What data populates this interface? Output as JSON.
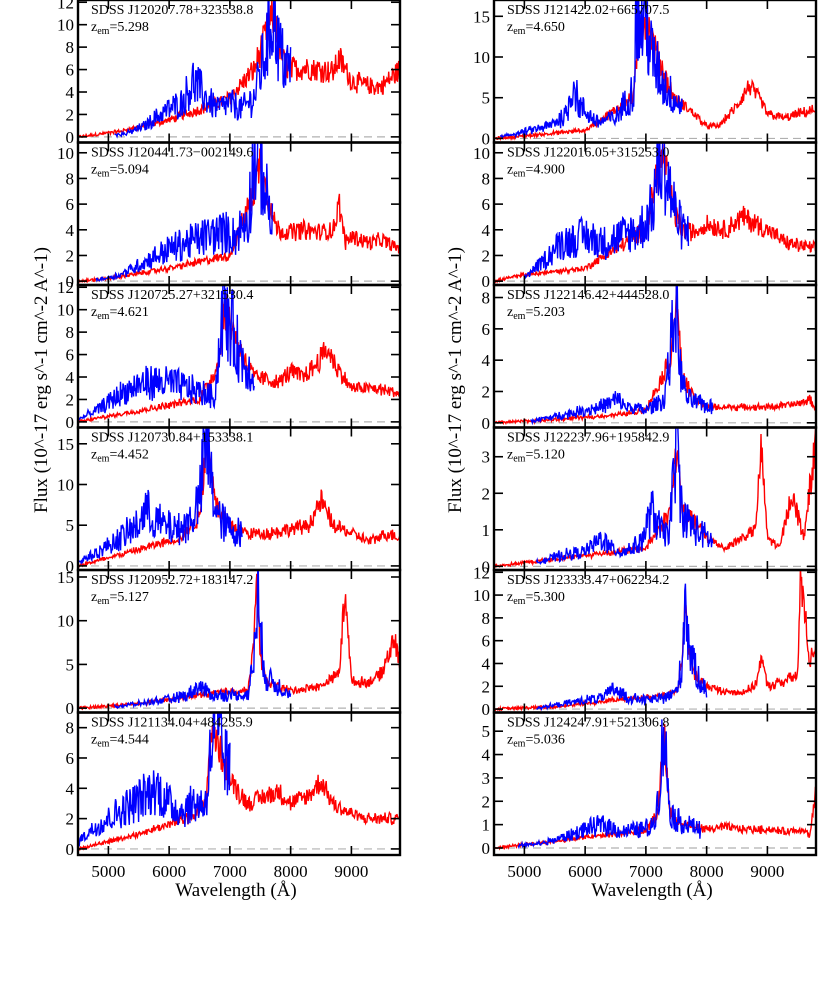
{
  "colors": {
    "red_spectrum": "#ff0000",
    "blue_spectrum": "#0000ff",
    "zero_line": "#b0b0b0",
    "axes": "#000000"
  },
  "columns": [
    {
      "ylabel": "Flux (10^-17 erg s^-1 cm^-2 A^-1)",
      "xlabel": "Wavelength (Å)"
    },
    {
      "ylabel": "Flux (10^-17 erg s^-1 cm^-2 A^-1)",
      "xlabel": "Wavelength (Å)"
    }
  ],
  "chart_data": [
    {
      "type": "line",
      "name": "SDSS J120207.78+323538.8",
      "z_label": "z",
      "z_sub": "em",
      "z_value": "=5.298",
      "xlim": [
        4500,
        9800
      ],
      "ylim": [
        -0.5,
        12.2
      ],
      "yticks": [
        0,
        2,
        4,
        6,
        8,
        10,
        12
      ],
      "xticks": [
        5000,
        6000,
        7000,
        8000,
        9000
      ],
      "xticks_labeled": false,
      "red": {
        "x": [
          4500,
          5200,
          6000,
          6800,
          7000,
          7400,
          7650,
          7750,
          7800,
          7900,
          8000,
          8200,
          8500,
          8700,
          8800,
          9000,
          9300,
          9500,
          9800
        ],
        "y": [
          0,
          0.5,
          1.5,
          3,
          3.5,
          6,
          10,
          11,
          8.5,
          6.5,
          6,
          6.2,
          6,
          5.8,
          7,
          5,
          4.5,
          4.5,
          6
        ]
      },
      "blue": {
        "x": [
          5100,
          5300,
          5600,
          5800,
          6000,
          6200,
          6400,
          6600,
          6800,
          7000,
          7200,
          7400,
          7600,
          7700,
          7750,
          7800,
          7900,
          8000
        ],
        "y": [
          0.2,
          0.3,
          1,
          1.8,
          2.5,
          3,
          5,
          3.5,
          2.5,
          3,
          2.5,
          3.5,
          8,
          11.2,
          10.5,
          8,
          6.5,
          6
        ]
      }
    },
    {
      "type": "line",
      "name": "SDSS J121422.02+665707.5",
      "z_label": "z",
      "z_sub": "em",
      "z_value": "=4.650",
      "xlim": [
        4500,
        9800
      ],
      "ylim": [
        -0.5,
        17
      ],
      "yticks": [
        0,
        5,
        10,
        15
      ],
      "xticks": [
        5000,
        6000,
        7000,
        8000,
        9000
      ],
      "xticks_labeled": false,
      "red": {
        "x": [
          4500,
          5000,
          6000,
          6800,
          6900,
          7000,
          7200,
          7400,
          7500,
          7600,
          7800,
          8000,
          8200,
          8500,
          8700,
          8900,
          9000,
          9300,
          9500,
          9800
        ],
        "y": [
          0,
          0.3,
          1,
          5,
          15,
          14.5,
          10,
          6,
          4.5,
          4.2,
          3,
          1.5,
          1.5,
          4,
          6.5,
          4.5,
          3,
          2.5,
          3,
          3.5
        ]
      },
      "blue": {
        "x": [
          4600,
          5000,
          5400,
          5700,
          5800,
          5900,
          6200,
          6500,
          6800,
          6850,
          6900,
          6950,
          7000,
          7100,
          7300,
          7500,
          7600
        ],
        "y": [
          0.2,
          0.8,
          1.5,
          3,
          7,
          4,
          2,
          2.5,
          6,
          16.5,
          13,
          15,
          14.5,
          10,
          6.5,
          4.5,
          4.2
        ]
      }
    },
    {
      "type": "line",
      "name": "SDSS J120441.73−002149.6",
      "z_label": "z",
      "z_sub": "em",
      "z_value": "=5.094",
      "xlim": [
        4500,
        9800
      ],
      "ylim": [
        -0.3,
        10.8
      ],
      "yticks": [
        0,
        2,
        4,
        6,
        8,
        10
      ],
      "xticks": [
        5000,
        6000,
        7000,
        8000,
        9000
      ],
      "xticks_labeled": false,
      "red": {
        "x": [
          4500,
          5000,
          6000,
          7000,
          7400,
          7500,
          7600,
          7700,
          7800,
          8000,
          8200,
          8500,
          8700,
          8800,
          8900,
          9000,
          9300,
          9500,
          9800
        ],
        "y": [
          0,
          0.2,
          1,
          2,
          7,
          9.5,
          7,
          5,
          4,
          3.8,
          4,
          3.8,
          4,
          6,
          3,
          3.5,
          3,
          3.2,
          2.5
        ]
      },
      "blue": {
        "x": [
          4800,
          5200,
          5600,
          6000,
          6300,
          6600,
          6900,
          7100,
          7300,
          7400,
          7450,
          7500,
          7550,
          7600,
          7700
        ],
        "y": [
          0.1,
          0.5,
          1.5,
          2.5,
          3,
          3.5,
          3.8,
          3.5,
          5,
          9.5,
          10,
          9.5,
          8,
          6.5,
          4.5
        ]
      }
    },
    {
      "type": "line",
      "name": "SDSS J122016.05+315253.0",
      "z_label": "z",
      "z_sub": "em",
      "z_value": "=4.900",
      "xlim": [
        4500,
        9800
      ],
      "ylim": [
        -0.3,
        10.8
      ],
      "yticks": [
        0,
        2,
        4,
        6,
        8,
        10
      ],
      "xticks": [
        5000,
        6000,
        7000,
        8000,
        9000
      ],
      "xticks_labeled": false,
      "red": {
        "x": [
          4500,
          5000,
          6000,
          7000,
          7200,
          7300,
          7400,
          7500,
          7600,
          7800,
          8000,
          8300,
          8600,
          9000,
          9300,
          9500,
          9800
        ],
        "y": [
          0,
          0.5,
          1,
          4,
          9,
          9.5,
          7,
          5,
          4,
          3.8,
          4.5,
          4,
          5,
          4,
          3,
          2.8,
          2.5
        ]
      },
      "blue": {
        "x": [
          5000,
          5300,
          5600,
          6000,
          6300,
          6600,
          6900,
          7100,
          7200,
          7250,
          7300,
          7400,
          7500,
          7600,
          7700
        ],
        "y": [
          0.3,
          1.5,
          3,
          3.5,
          3,
          3.5,
          4,
          5.5,
          9,
          9.8,
          9.5,
          7,
          5,
          4,
          3.8
        ]
      }
    },
    {
      "type": "line",
      "name": "SDSS J120725.27+321530.4",
      "z_label": "z",
      "z_sub": "em",
      "z_value": "=4.621",
      "xlim": [
        4500,
        9800
      ],
      "ylim": [
        -0.5,
        12.2
      ],
      "yticks": [
        0,
        2,
        4,
        6,
        8,
        10,
        12
      ],
      "xticks": [
        5000,
        6000,
        7000,
        8000,
        9000
      ],
      "xticks_labeled": false,
      "red": {
        "x": [
          4500,
          5500,
          6500,
          6800,
          6900,
          7000,
          7200,
          7400,
          7600,
          7800,
          8000,
          8200,
          8400,
          8600,
          8800,
          9000,
          9300,
          9600,
          9800
        ],
        "y": [
          0,
          1,
          2,
          5,
          10,
          9,
          6,
          4,
          3.8,
          3.5,
          4.5,
          4,
          5,
          6.5,
          4.5,
          3,
          3,
          2.8,
          2.5
        ]
      },
      "blue": {
        "x": [
          4500,
          4800,
          5200,
          5600,
          6000,
          6300,
          6600,
          6750,
          6850,
          6900,
          6950,
          7000,
          7100,
          7200,
          7400
        ],
        "y": [
          0.2,
          1,
          2.5,
          3.5,
          3.5,
          3,
          2.5,
          2.2,
          8,
          11.5,
          8.5,
          9,
          7,
          5.5,
          4.2
        ]
      }
    },
    {
      "type": "line",
      "name": "SDSS J122146.42+444528.0",
      "z_label": "z",
      "z_sub": "em",
      "z_value": "=5.203",
      "xlim": [
        4500,
        9800
      ],
      "ylim": [
        -0.3,
        8.8
      ],
      "yticks": [
        0,
        2,
        4,
        6,
        8
      ],
      "xticks": [
        5000,
        6000,
        7000,
        8000,
        9000
      ],
      "xticks_labeled": false,
      "red": {
        "x": [
          4500,
          5500,
          6500,
          7000,
          7400,
          7500,
          7600,
          7800,
          8000,
          8500,
          9000,
          9500,
          9700,
          9800
        ],
        "y": [
          0,
          0.2,
          0.5,
          0.8,
          4,
          8,
          3,
          1.5,
          1,
          1,
          1,
          1.2,
          1.5,
          0.8
        ]
      },
      "blue": {
        "x": [
          5100,
          5500,
          6000,
          6400,
          6500,
          6700,
          7000,
          7300,
          7450,
          7500,
          7550,
          7600,
          7700,
          7900,
          8100
        ],
        "y": [
          0.1,
          0.4,
          0.8,
          1.2,
          1.5,
          1,
          0.8,
          1.5,
          6,
          8,
          4,
          2.5,
          1.5,
          1.2,
          1
        ]
      }
    },
    {
      "type": "line",
      "name": "SDSS J120730.84+153338.1",
      "z_label": "z",
      "z_sub": "em",
      "z_value": "=4.452",
      "xlim": [
        4500,
        9800
      ],
      "ylim": [
        -0.5,
        17
      ],
      "yticks": [
        0,
        5,
        10,
        15
      ],
      "xticks": [
        5000,
        6000,
        7000,
        8000,
        9000
      ],
      "xticks_labeled": false,
      "red": {
        "x": [
          4500,
          5500,
          6200,
          6500,
          6600,
          6700,
          6800,
          7000,
          7300,
          7600,
          8000,
          8300,
          8500,
          8700,
          9000,
          9300,
          9600,
          9800
        ],
        "y": [
          0,
          2,
          3.5,
          6,
          14,
          12,
          7,
          5,
          4,
          4,
          4.5,
          5,
          8,
          5,
          4,
          3,
          4,
          3.5
        ]
      },
      "blue": {
        "x": [
          4500,
          4900,
          5300,
          5500,
          5600,
          5700,
          5900,
          6100,
          6300,
          6500,
          6600,
          6650,
          6700,
          6800,
          7000,
          7200
        ],
        "y": [
          0.5,
          2,
          4,
          5,
          7,
          6,
          5,
          4.5,
          5,
          8,
          15,
          13,
          10,
          6,
          4.5,
          4
        ]
      }
    },
    {
      "type": "line",
      "name": "SDSS J122237.96+195842.9",
      "z_label": "z",
      "z_sub": "em",
      "z_value": "=5.120",
      "xlim": [
        4500,
        9800
      ],
      "ylim": [
        -0.1,
        3.8
      ],
      "yticks": [
        0,
        1,
        2,
        3
      ],
      "xticks": [
        5000,
        6000,
        7000,
        8000,
        9000
      ],
      "xticks_labeled": false,
      "red": {
        "x": [
          4500,
          5500,
          6500,
          7000,
          7400,
          7500,
          7550,
          7600,
          7800,
          8000,
          8300,
          8600,
          8800,
          8900,
          9000,
          9200,
          9400,
          9600,
          9800
        ],
        "y": [
          0,
          0.2,
          0.4,
          0.5,
          1.5,
          3.2,
          2.5,
          1.5,
          1.2,
          0.8,
          0.5,
          0.8,
          1,
          3.2,
          0.8,
          0.5,
          2,
          0.8,
          3.5
        ]
      },
      "blue": {
        "x": [
          5200,
          5600,
          6000,
          6300,
          6400,
          6600,
          6900,
          7100,
          7300,
          7400,
          7500,
          7550,
          7600,
          7700,
          7900,
          8100
        ],
        "y": [
          0.1,
          0.3,
          0.4,
          0.8,
          0.5,
          0.4,
          0.6,
          1.5,
          0.8,
          1.2,
          3.3,
          2.5,
          1.4,
          1.2,
          0.9,
          0.7
        ]
      }
    },
    {
      "type": "line",
      "name": "SDSS J120952.72+183147.2",
      "z_label": "z",
      "z_sub": "em",
      "z_value": "=5.127",
      "xlim": [
        4500,
        9800
      ],
      "ylim": [
        -0.5,
        15.8
      ],
      "yticks": [
        0,
        5,
        10,
        15
      ],
      "xticks": [
        5000,
        6000,
        7000,
        8000,
        9000
      ],
      "xticks_labeled": false,
      "red": {
        "x": [
          4500,
          5500,
          6500,
          7000,
          7300,
          7400,
          7450,
          7500,
          7600,
          8000,
          8500,
          8800,
          8900,
          9000,
          9300,
          9500,
          9700,
          9800
        ],
        "y": [
          0,
          0.5,
          1.5,
          2,
          2,
          8,
          15,
          6,
          3,
          2,
          2.5,
          4,
          14,
          3,
          3,
          4,
          8,
          5
        ]
      },
      "blue": {
        "x": [
          5100,
          5500,
          6000,
          6300,
          6500,
          6700,
          7000,
          7300,
          7400,
          7450,
          7500,
          7600,
          7800,
          8000
        ],
        "y": [
          0.2,
          0.5,
          1,
          1.5,
          2.5,
          1.5,
          1.5,
          1.5,
          6,
          14.5,
          8,
          3.5,
          2.5,
          1.8
        ]
      }
    },
    {
      "type": "line",
      "name": "SDSS J123333.47+062234.2",
      "z_label": "z",
      "z_sub": "em",
      "z_value": "=5.300",
      "xlim": [
        4500,
        9800
      ],
      "ylim": [
        -0.3,
        12.2
      ],
      "yticks": [
        0,
        2,
        4,
        6,
        8,
        10,
        12
      ],
      "xticks": [
        5000,
        6000,
        7000,
        8000,
        9000
      ],
      "xticks_labeled": false,
      "red": {
        "x": [
          4500,
          5500,
          6500,
          7000,
          7500,
          7600,
          7650,
          7700,
          7800,
          8000,
          8300,
          8600,
          8800,
          8900,
          9000,
          9300,
          9500,
          9550,
          9700,
          9800
        ],
        "y": [
          0,
          0.2,
          0.8,
          1,
          1.5,
          4,
          10,
          5,
          3,
          2,
          1.5,
          1.5,
          2,
          4.5,
          2,
          2.5,
          3,
          12,
          4,
          6
        ]
      },
      "blue": {
        "x": [
          5200,
          5600,
          6000,
          6300,
          6500,
          6700,
          7000,
          7300,
          7500,
          7600,
          7650,
          7700,
          7800,
          7900,
          8000
        ],
        "y": [
          0.1,
          0.4,
          0.8,
          1,
          1.8,
          1,
          0.8,
          1,
          1.5,
          4,
          11.2,
          6,
          3.5,
          2.5,
          1.5
        ]
      }
    },
    {
      "type": "line",
      "name": "SDSS J121134.04+484235.9",
      "z_label": "z",
      "z_sub": "em",
      "z_value": "=4.544",
      "xlim": [
        4500,
        9800
      ],
      "ylim": [
        -0.4,
        9
      ],
      "yticks": [
        0,
        2,
        4,
        6,
        8
      ],
      "xticks": [
        5000,
        6000,
        7000,
        8000,
        9000
      ],
      "xticks_labeled": true,
      "red": {
        "x": [
          4500,
          5500,
          6300,
          6600,
          6700,
          6800,
          7000,
          7300,
          7600,
          7800,
          8000,
          8300,
          8500,
          8700,
          8900,
          9200,
          9500,
          9800
        ],
        "y": [
          0,
          1,
          2,
          3,
          8,
          7,
          4.5,
          3,
          3.5,
          3.8,
          3,
          3.5,
          4.5,
          3,
          2.5,
          2,
          2,
          2
        ]
      },
      "blue": {
        "x": [
          4500,
          4800,
          5200,
          5600,
          5800,
          6000,
          6200,
          6400,
          6600,
          6700,
          6750,
          6800,
          6900,
          7000
        ],
        "y": [
          0.5,
          1.5,
          2.5,
          3.5,
          4,
          3,
          2.5,
          3,
          3,
          7,
          8,
          7.5,
          6,
          5
        ]
      }
    },
    {
      "type": "line",
      "name": "SDSS J124247.91+521306.8",
      "z_label": "z",
      "z_sub": "em",
      "z_value": "=5.036",
      "xlim": [
        4500,
        9800
      ],
      "ylim": [
        -0.3,
        5.8
      ],
      "yticks": [
        0,
        1,
        2,
        3,
        4,
        5
      ],
      "xticks": [
        5000,
        6000,
        7000,
        8000,
        9000
      ],
      "xticks_labeled": true,
      "red": {
        "x": [
          4500,
          5500,
          6500,
          7000,
          7200,
          7300,
          7350,
          7400,
          7500,
          7600,
          7800,
          8000,
          8300,
          8600,
          9000,
          9300,
          9600,
          9700,
          9800
        ],
        "y": [
          0,
          0.3,
          0.6,
          0.7,
          1.5,
          5,
          3,
          1.5,
          1.2,
          1,
          0.9,
          0.8,
          0.9,
          0.8,
          0.8,
          0.7,
          0.8,
          0.5,
          2.5
        ]
      },
      "blue": {
        "x": [
          4900,
          5300,
          5700,
          6000,
          6300,
          6600,
          6900,
          7100,
          7200,
          7300,
          7350,
          7400,
          7500,
          7700,
          7900
        ],
        "y": [
          0.1,
          0.2,
          0.5,
          0.8,
          1,
          0.7,
          0.8,
          0.9,
          2,
          5.2,
          3,
          1.6,
          1.2,
          1,
          0.8
        ]
      }
    }
  ]
}
